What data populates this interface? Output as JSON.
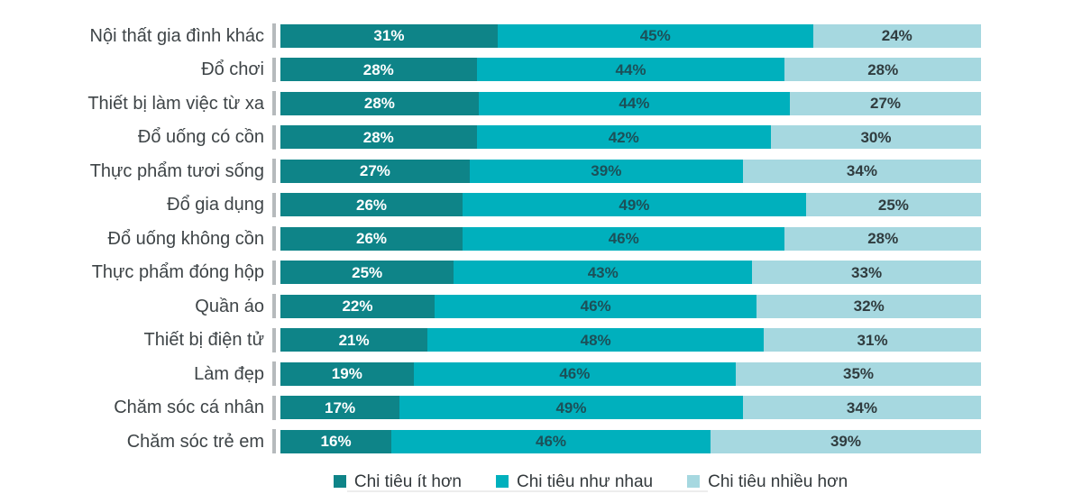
{
  "chart_data": {
    "type": "bar",
    "orientation": "horizontal",
    "stacked": true,
    "unit": "%",
    "value_label_suffix": "%",
    "legend_position": "bottom",
    "grid": false,
    "xlim": [
      0,
      100
    ],
    "categories": [
      "Nội thất gia đình khác",
      "Đổ chơi",
      "Thiết bị làm việc từ xa",
      "Đổ uống có cồn",
      "Thực phẩm tươi sống",
      "Đổ gia dụng",
      "Đổ uống không cồn",
      "Thực phẩm đóng hộp",
      "Quần áo",
      "Thiết bị điện tử",
      "Làm đẹp",
      "Chăm sóc cá nhân",
      "Chăm sóc trẻ em"
    ],
    "series": [
      {
        "name": "Chi tiêu ít hơn",
        "color": "#0e8488",
        "values": [
          31,
          28,
          28,
          28,
          27,
          26,
          26,
          25,
          22,
          21,
          19,
          17,
          16
        ]
      },
      {
        "name": "Chi tiêu như nhau",
        "color": "#00b0bd",
        "values": [
          45,
          44,
          44,
          42,
          39,
          49,
          46,
          43,
          46,
          48,
          46,
          49,
          46
        ]
      },
      {
        "name": "Chi tiêu nhiều hơn",
        "color": "#a6d8e0",
        "values": [
          24,
          28,
          27,
          30,
          34,
          25,
          28,
          33,
          32,
          31,
          35,
          34,
          39
        ]
      }
    ]
  }
}
